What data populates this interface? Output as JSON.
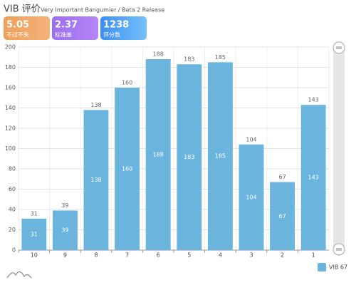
{
  "chart_data": {
    "type": "bar",
    "title": "VIB 评价",
    "subtitle": "Very Important Bangumier / Beta 2 Release",
    "stats": [
      {
        "value": 5.05,
        "label": "不过不失"
      },
      {
        "value": 2.37,
        "label": "标准差"
      },
      {
        "value": 1238,
        "label": "评分数"
      }
    ],
    "categories": [
      "10",
      "9",
      "8",
      "7",
      "6",
      "5",
      "4",
      "3",
      "2",
      "1"
    ],
    "series": [
      {
        "name": "VIB 67",
        "color": "#6ab4dd",
        "values": [
          31,
          39,
          138,
          160,
          188,
          183,
          185,
          104,
          67,
          143
        ]
      }
    ],
    "ylim": [
      0,
      200
    ],
    "yticks": [
      0,
      20,
      40,
      60,
      80,
      100,
      120,
      140,
      160,
      180,
      200
    ],
    "grid": true
  }
}
